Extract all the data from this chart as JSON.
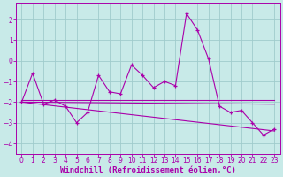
{
  "xlabel": "Windchill (Refroidissement éolien,°C)",
  "xlim": [
    -0.5,
    23.5
  ],
  "ylim": [
    -4.5,
    2.8
  ],
  "yticks": [
    -4,
    -3,
    -2,
    -1,
    0,
    1,
    2
  ],
  "xticks": [
    0,
    1,
    2,
    3,
    4,
    5,
    6,
    7,
    8,
    9,
    10,
    11,
    12,
    13,
    14,
    15,
    16,
    17,
    18,
    19,
    20,
    21,
    22,
    23
  ],
  "bg_color": "#c8eae8",
  "grid_color": "#a0cccc",
  "line_color": "#aa00aa",
  "main_data": [
    -2.0,
    -0.6,
    -2.1,
    -1.9,
    -2.2,
    -3.0,
    -2.5,
    -0.7,
    -1.5,
    -1.6,
    -0.2,
    -0.7,
    -1.3,
    -1.0,
    -1.2,
    2.3,
    1.5,
    0.1,
    -2.2,
    -2.5,
    -2.4,
    -3.0,
    -3.6,
    -3.3
  ],
  "trend1": {
    "x": [
      0,
      23
    ],
    "y": [
      -1.9,
      -1.9
    ]
  },
  "trend2": {
    "x": [
      0,
      23
    ],
    "y": [
      -2.0,
      -3.4
    ]
  },
  "trend3": {
    "x": [
      0,
      23
    ],
    "y": [
      -2.0,
      -2.1
    ]
  },
  "xlabel_fontsize": 6.5,
  "tick_fontsize": 5.5
}
